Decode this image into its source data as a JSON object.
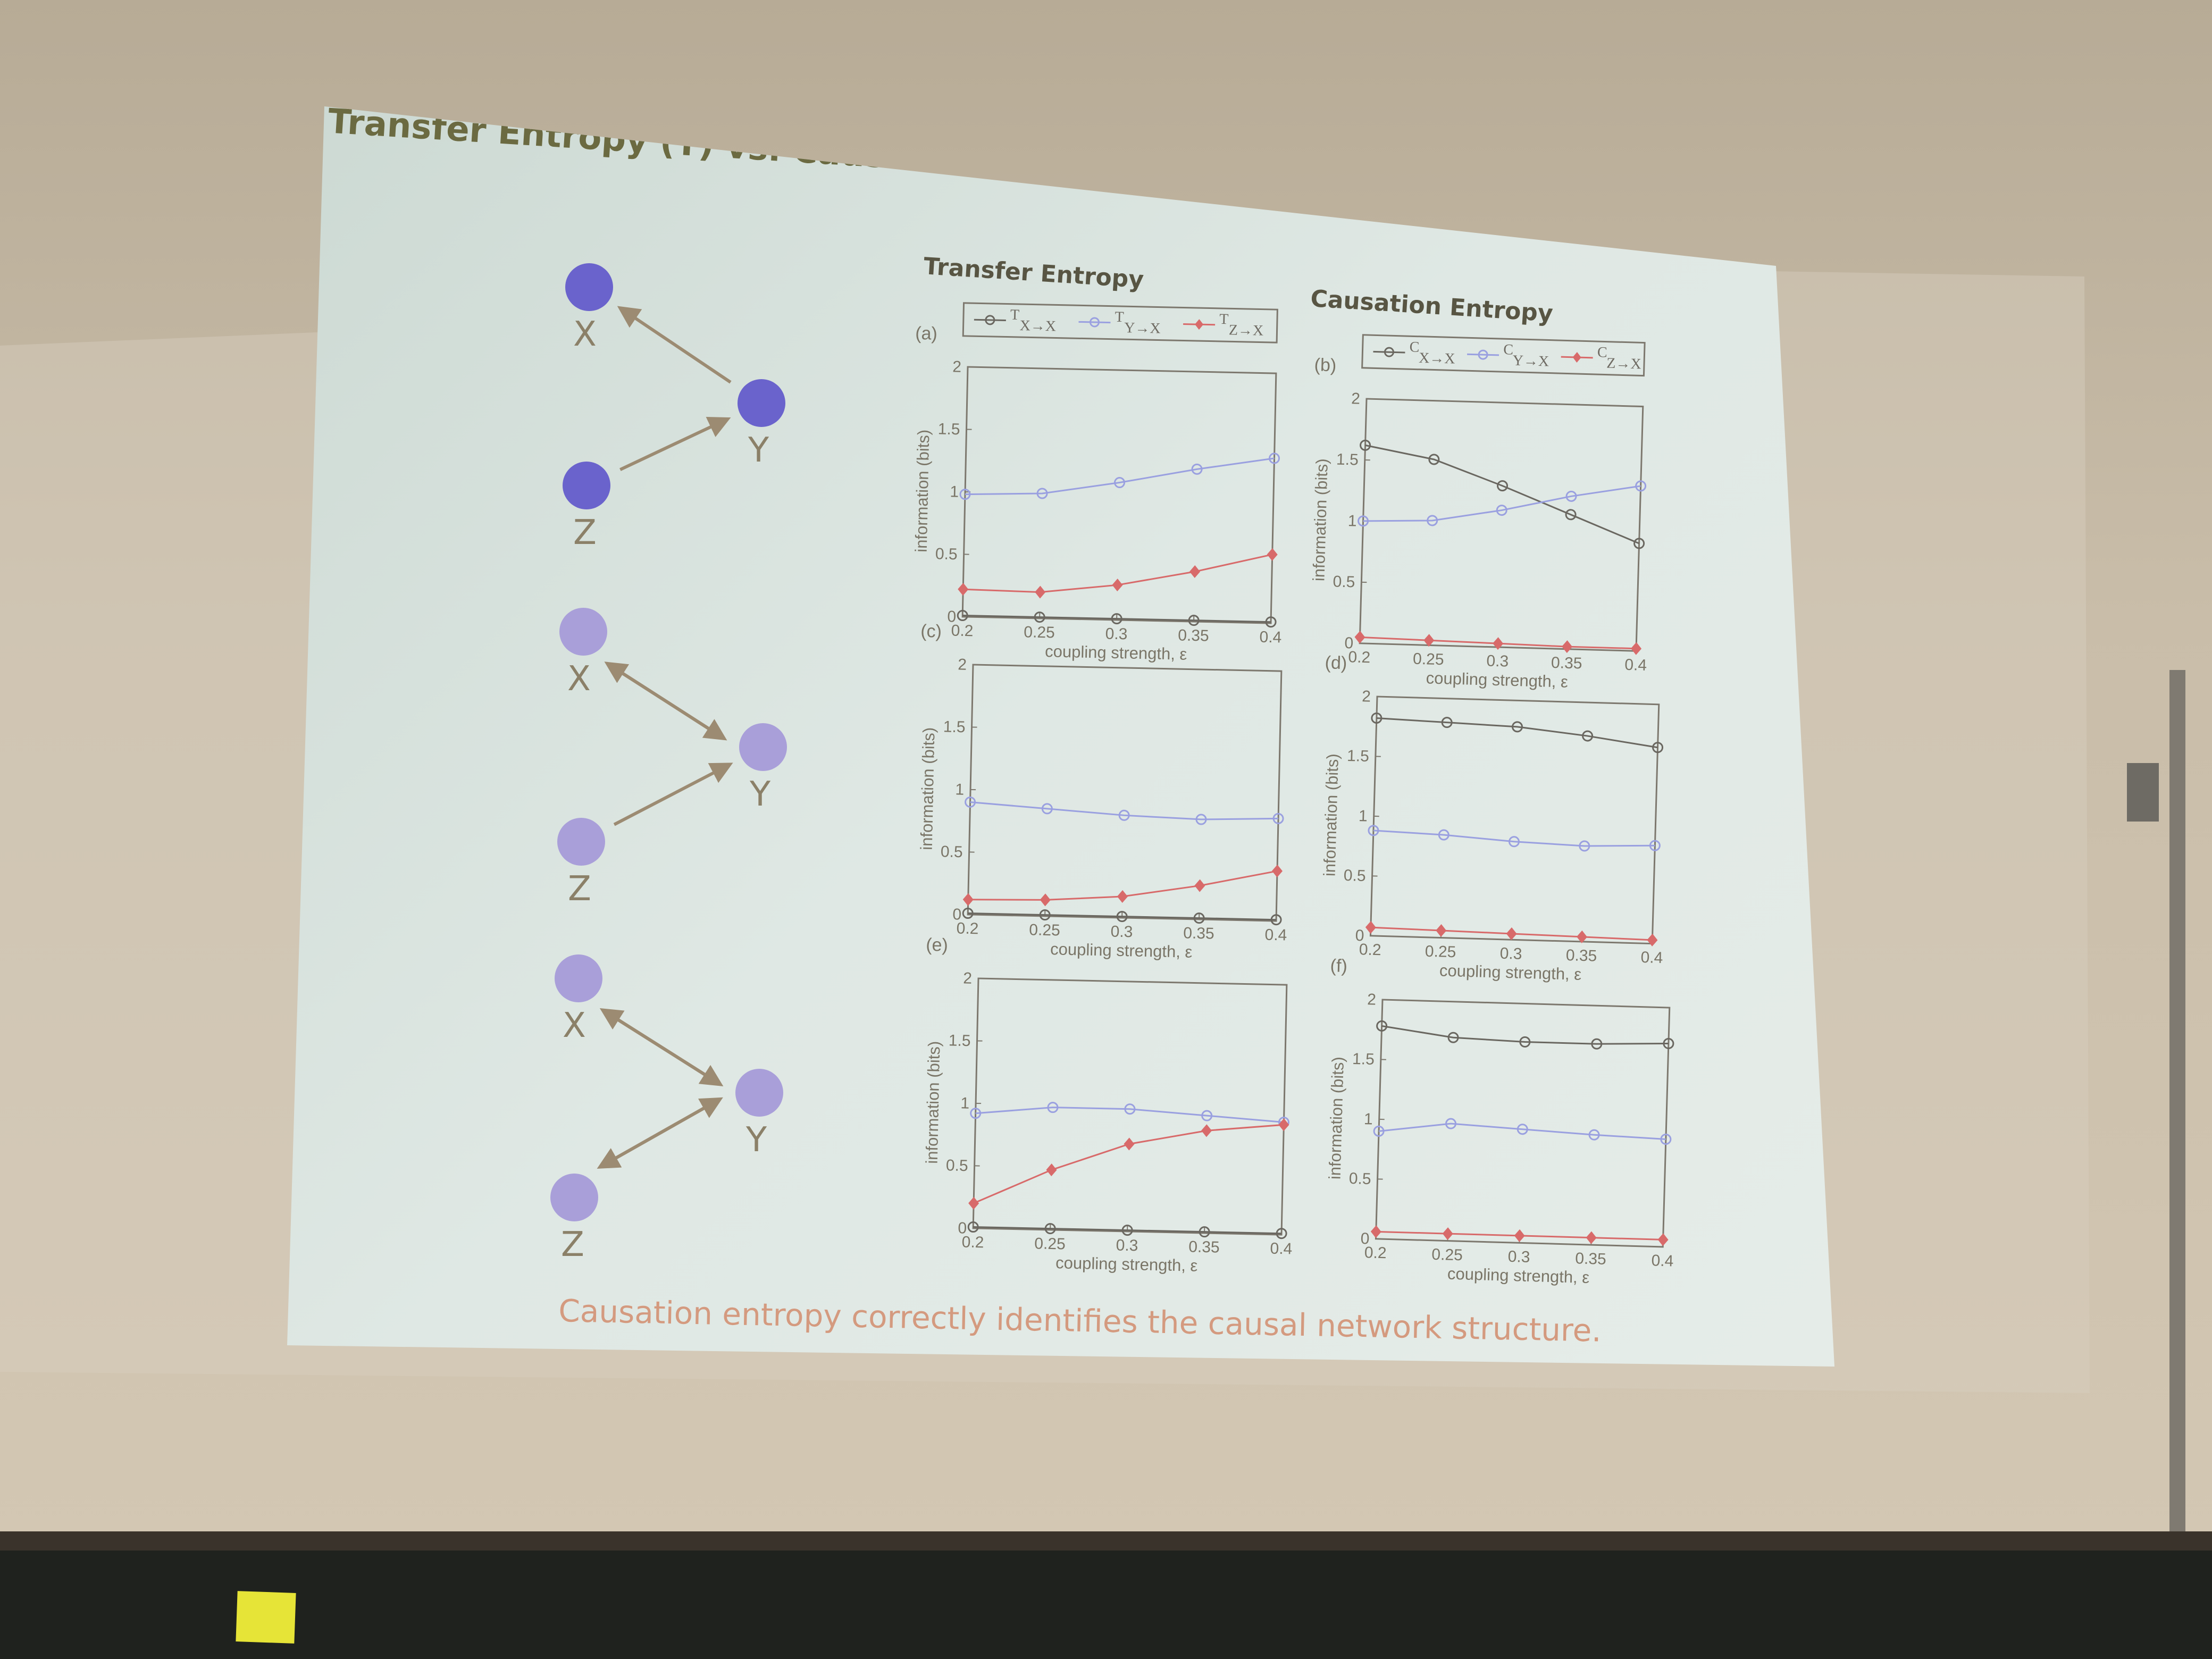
{
  "slide": {
    "title": "Transfer Entropy (T) vs. Causation Entropy (C)",
    "column_titles": [
      "Transfer Entropy",
      "Causation Entropy"
    ],
    "conclusion": "Causation entropy correctly identifies the causal network structure."
  },
  "colors": {
    "blue_series": "#9aa0e0",
    "black_series": "#6a6760",
    "red_series": "#d86a6a",
    "node_dark": "#6a63cc",
    "node_light": "#a99fd9",
    "arrow": "#9c8b72"
  },
  "networks": [
    {
      "nodes": [
        "X",
        "Y",
        "Z"
      ],
      "edges": [
        [
          "Y",
          "X"
        ],
        [
          "Z",
          "Y"
        ]
      ]
    },
    {
      "nodes": [
        "X",
        "Y",
        "Z"
      ],
      "edges": [
        [
          "Y",
          "X"
        ],
        [
          "X",
          "Y"
        ],
        [
          "Z",
          "Y"
        ]
      ]
    },
    {
      "nodes": [
        "X",
        "Y",
        "Z"
      ],
      "edges": [
        [
          "Y",
          "X"
        ],
        [
          "X",
          "Y"
        ],
        [
          "Z",
          "Y"
        ],
        [
          "Y",
          "Z"
        ]
      ]
    }
  ],
  "chart_data": [
    {
      "type": "line",
      "panel": "(a)",
      "xlabel": "coupling strength, ε",
      "ylabel": "information (bits)",
      "xlim": [
        0.2,
        0.4
      ],
      "ylim": [
        0,
        2
      ],
      "xticks": [
        "0.2",
        "0.25",
        "0.3",
        "0.35",
        "0.4"
      ],
      "yticks": [
        "0",
        "0.5",
        "1",
        "1.5",
        "2"
      ],
      "legend": [
        "T",
        "T",
        "T"
      ],
      "legend_subscripts": [
        "X→X",
        "Y→X",
        "Z→X"
      ],
      "series": [
        {
          "name": "T X→X",
          "color_key": "black_series",
          "marker": "circle",
          "x": [
            0.2,
            0.25,
            0.3,
            0.35,
            0.4
          ],
          "y": [
            0.01,
            0.01,
            0.01,
            0.01,
            0.01
          ]
        },
        {
          "name": "T Y→X",
          "color_key": "blue_series",
          "marker": "circle",
          "x": [
            0.2,
            0.25,
            0.3,
            0.35,
            0.4
          ],
          "y": [
            0.98,
            1.0,
            1.1,
            1.22,
            1.32
          ]
        },
        {
          "name": "T Z→X",
          "color_key": "red_series",
          "marker": "diamond",
          "x": [
            0.2,
            0.25,
            0.3,
            0.35,
            0.4
          ],
          "y": [
            0.22,
            0.21,
            0.28,
            0.4,
            0.55
          ]
        }
      ]
    },
    {
      "type": "line",
      "panel": "(b)",
      "xlabel": "coupling strength, ε",
      "ylabel": "information (bits)",
      "xlim": [
        0.2,
        0.4
      ],
      "ylim": [
        0,
        2
      ],
      "xticks": [
        "0.2",
        "0.25",
        "0.3",
        "0.35",
        "0.4"
      ],
      "yticks": [
        "0",
        "0.5",
        "1",
        "1.5",
        "2"
      ],
      "legend": [
        "C",
        "C",
        "C"
      ],
      "legend_subscripts": [
        "X→X",
        "Y→X",
        "Z→X"
      ],
      "series": [
        {
          "name": "C X→X",
          "color_key": "black_series",
          "marker": "circle",
          "x": [
            0.2,
            0.25,
            0.3,
            0.35,
            0.4
          ],
          "y": [
            1.62,
            1.52,
            1.32,
            1.1,
            0.88
          ]
        },
        {
          "name": "C Y→X",
          "color_key": "blue_series",
          "marker": "circle",
          "x": [
            0.2,
            0.25,
            0.3,
            0.35,
            0.4
          ],
          "y": [
            1.0,
            1.02,
            1.12,
            1.25,
            1.35
          ]
        },
        {
          "name": "C Z→X",
          "color_key": "red_series",
          "marker": "diamond",
          "x": [
            0.2,
            0.25,
            0.3,
            0.35,
            0.4
          ],
          "y": [
            0.05,
            0.04,
            0.03,
            0.02,
            0.02
          ]
        }
      ]
    },
    {
      "type": "line",
      "panel": "(c)",
      "xlabel": "coupling strength, ε",
      "ylabel": "information (bits)",
      "xlim": [
        0.2,
        0.4
      ],
      "ylim": [
        0,
        2
      ],
      "xticks": [
        "0.2",
        "0.25",
        "0.3",
        "0.35",
        "0.4"
      ],
      "yticks": [
        "0",
        "0.5",
        "1",
        "1.5",
        "2"
      ],
      "series": [
        {
          "name": "T X→X",
          "color_key": "black_series",
          "marker": "circle",
          "x": [
            0.2,
            0.25,
            0.3,
            0.35,
            0.4
          ],
          "y": [
            0.01,
            0.01,
            0.01,
            0.01,
            0.01
          ]
        },
        {
          "name": "T Y→X",
          "color_key": "blue_series",
          "marker": "circle",
          "x": [
            0.2,
            0.25,
            0.3,
            0.35,
            0.4
          ],
          "y": [
            0.9,
            0.86,
            0.82,
            0.8,
            0.82
          ]
        },
        {
          "name": "T Z→X",
          "color_key": "red_series",
          "marker": "diamond",
          "x": [
            0.2,
            0.25,
            0.3,
            0.35,
            0.4
          ],
          "y": [
            0.12,
            0.13,
            0.17,
            0.27,
            0.4
          ]
        }
      ]
    },
    {
      "type": "line",
      "panel": "(d)",
      "xlabel": "coupling strength, ε",
      "ylabel": "information (bits)",
      "xlim": [
        0.2,
        0.4
      ],
      "ylim": [
        0,
        2
      ],
      "xticks": [
        "0.2",
        "0.25",
        "0.3",
        "0.35",
        "0.4"
      ],
      "yticks": [
        "0",
        "0.5",
        "1",
        "1.5",
        "2"
      ],
      "series": [
        {
          "name": "C X→X",
          "color_key": "black_series",
          "marker": "circle",
          "x": [
            0.2,
            0.25,
            0.3,
            0.35,
            0.4
          ],
          "y": [
            1.82,
            1.8,
            1.78,
            1.72,
            1.64
          ]
        },
        {
          "name": "C Y→X",
          "color_key": "blue_series",
          "marker": "circle",
          "x": [
            0.2,
            0.25,
            0.3,
            0.35,
            0.4
          ],
          "y": [
            0.88,
            0.86,
            0.82,
            0.8,
            0.82
          ]
        },
        {
          "name": "C Z→X",
          "color_key": "red_series",
          "marker": "diamond",
          "x": [
            0.2,
            0.25,
            0.3,
            0.35,
            0.4
          ],
          "y": [
            0.07,
            0.06,
            0.05,
            0.04,
            0.03
          ]
        }
      ]
    },
    {
      "type": "line",
      "panel": "(e)",
      "xlabel": "coupling strength, ε",
      "ylabel": "information (bits)",
      "xlim": [
        0.2,
        0.4
      ],
      "ylim": [
        0,
        2
      ],
      "xticks": [
        "0.2",
        "0.25",
        "0.3",
        "0.35",
        "0.4"
      ],
      "yticks": [
        "0",
        "0.5",
        "1",
        "1.5",
        "2"
      ],
      "series": [
        {
          "name": "T X→X",
          "color_key": "black_series",
          "marker": "circle",
          "x": [
            0.2,
            0.25,
            0.3,
            0.35,
            0.4
          ],
          "y": [
            0.01,
            0.01,
            0.01,
            0.01,
            0.01
          ]
        },
        {
          "name": "T Y→X",
          "color_key": "blue_series",
          "marker": "circle",
          "x": [
            0.2,
            0.25,
            0.3,
            0.35,
            0.4
          ],
          "y": [
            0.92,
            0.98,
            0.98,
            0.94,
            0.9
          ]
        },
        {
          "name": "T Z→X",
          "color_key": "red_series",
          "marker": "diamond",
          "x": [
            0.2,
            0.25,
            0.3,
            0.35,
            0.4
          ],
          "y": [
            0.2,
            0.48,
            0.7,
            0.82,
            0.88
          ]
        }
      ]
    },
    {
      "type": "line",
      "panel": "(f)",
      "xlabel": "coupling strength, ε",
      "ylabel": "information (bits)",
      "xlim": [
        0.2,
        0.4
      ],
      "ylim": [
        0,
        2
      ],
      "xticks": [
        "0.2",
        "0.25",
        "0.3",
        "0.35",
        "0.4"
      ],
      "yticks": [
        "0",
        "0.5",
        "1",
        "1.5",
        "2"
      ],
      "series": [
        {
          "name": "C X→X",
          "color_key": "black_series",
          "marker": "circle",
          "x": [
            0.2,
            0.25,
            0.3,
            0.35,
            0.4
          ],
          "y": [
            1.78,
            1.7,
            1.68,
            1.68,
            1.7
          ]
        },
        {
          "name": "C Y→X",
          "color_key": "blue_series",
          "marker": "circle",
          "x": [
            0.2,
            0.25,
            0.3,
            0.35,
            0.4
          ],
          "y": [
            0.9,
            0.98,
            0.95,
            0.92,
            0.9
          ]
        },
        {
          "name": "C Z→X",
          "color_key": "red_series",
          "marker": "diamond",
          "x": [
            0.2,
            0.25,
            0.3,
            0.35,
            0.4
          ],
          "y": [
            0.06,
            0.06,
            0.06,
            0.06,
            0.06
          ]
        }
      ]
    }
  ]
}
